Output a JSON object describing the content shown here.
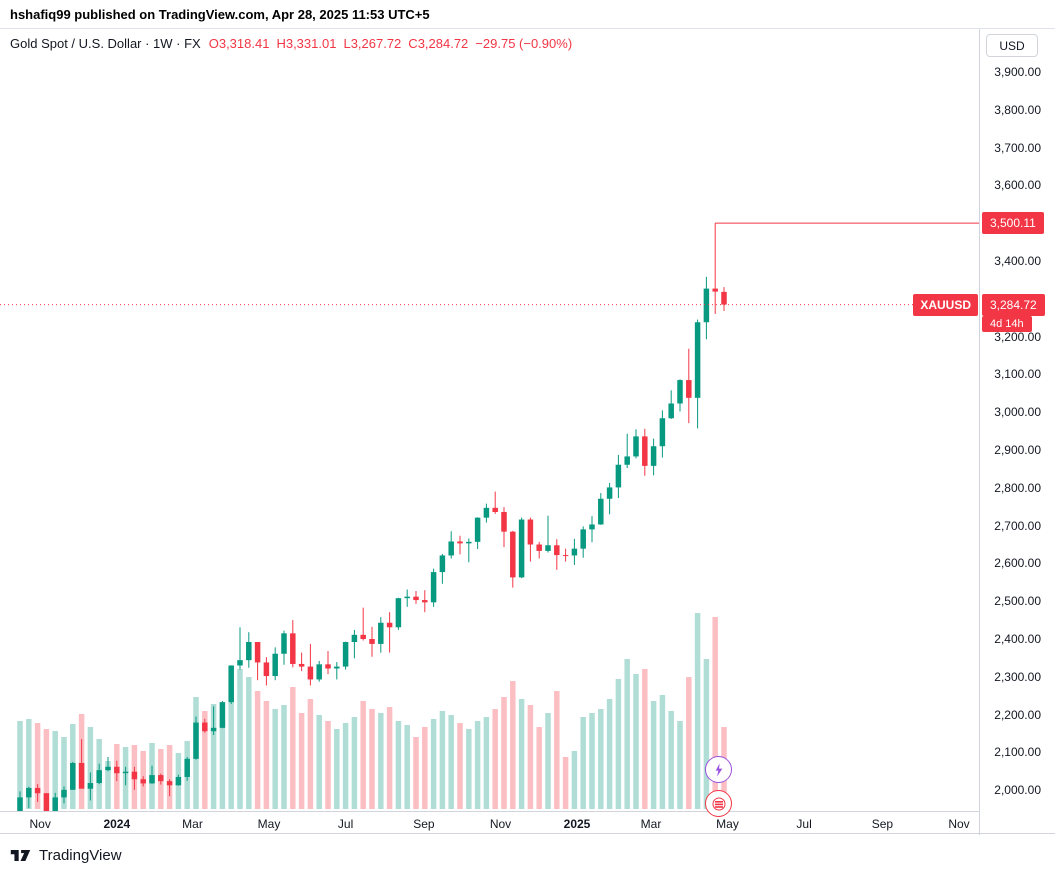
{
  "header": {
    "published_line": "hshafiq99 published on TradingView.com, Apr 28, 2025 11:53 UTC+5"
  },
  "legend": {
    "symbol_title": "Gold Spot / U.S. Dollar · 1W · FX",
    "ohlc": {
      "o_label": "O",
      "o": "3,318.41",
      "h_label": "H",
      "h": "3,331.01",
      "l_label": "L",
      "l": "3,267.72",
      "c_label": "C",
      "c": "3,284.72",
      "change": "−29.75 (−0.90%)"
    }
  },
  "price_axis": {
    "currency_button": "USD",
    "high_line_label": "3,500.11",
    "symbol_badge": "XAUUSD",
    "last_price_label": "3,284.72",
    "countdown": "4d 14h"
  },
  "footer": {
    "brand": "TradingView"
  },
  "colors": {
    "up": "#089981",
    "down": "#f23645",
    "text": "#131722",
    "axis_border": "#d1d4dc",
    "badge_red": "#f23645",
    "boost_purple": "#9b51e0"
  },
  "chart_data": {
    "type": "candlestick",
    "title": "Gold Spot / U.S. Dollar",
    "symbol": "XAUUSD",
    "timeframe": "1W",
    "exchange": "FX",
    "start_date": "2023-10-16",
    "interval_days": 7,
    "ylim": [
      1945,
      3930
    ],
    "y_tick_min": 2000,
    "y_tick_max": 3900,
    "y_tick_step": 100,
    "grid": false,
    "high_line": 3500.11,
    "last_price": 3284.72,
    "last_change": -29.75,
    "last_change_pct": -0.9,
    "candles_format": [
      "open",
      "high",
      "low",
      "close",
      "volume"
    ],
    "candles": [
      [
        1932,
        1997,
        1908,
        1981,
        88
      ],
      [
        1981,
        2009,
        1953,
        2006,
        90
      ],
      [
        2006,
        2016,
        1969,
        1992,
        86
      ],
      [
        1992,
        1992,
        1931,
        1938,
        80
      ],
      [
        1938,
        1993,
        1932,
        1981,
        78
      ],
      [
        1981,
        2010,
        1965,
        2001,
        72
      ],
      [
        2001,
        2075,
        2001,
        2072,
        85
      ],
      [
        2072,
        2135,
        2009,
        2004,
        95
      ],
      [
        2004,
        2047,
        1973,
        2019,
        82
      ],
      [
        2019,
        2070,
        2016,
        2053,
        70
      ],
      [
        2053,
        2088,
        2050,
        2062,
        48
      ],
      [
        2062,
        2078,
        2024,
        2045,
        65
      ],
      [
        2045,
        2062,
        2013,
        2049,
        62
      ],
      [
        2049,
        2062,
        2001,
        2029,
        64
      ],
      [
        2029,
        2037,
        2010,
        2018,
        58
      ],
      [
        2018,
        2065,
        2017,
        2040,
        66
      ],
      [
        2040,
        2044,
        2015,
        2024,
        60
      ],
      [
        2024,
        2029,
        1984,
        2013,
        64
      ],
      [
        2013,
        2041,
        2012,
        2035,
        56
      ],
      [
        2035,
        2088,
        2025,
        2083,
        68
      ],
      [
        2083,
        2195,
        2081,
        2179,
        112
      ],
      [
        2179,
        2189,
        2152,
        2156,
        98
      ],
      [
        2156,
        2222,
        2146,
        2165,
        105
      ],
      [
        2165,
        2236,
        2164,
        2233,
        90
      ],
      [
        2233,
        2330,
        2228,
        2330,
        128
      ],
      [
        2330,
        2431,
        2319,
        2344,
        140
      ],
      [
        2344,
        2418,
        2324,
        2392,
        132
      ],
      [
        2392,
        2392,
        2291,
        2338,
        118
      ],
      [
        2338,
        2352,
        2277,
        2302,
        108
      ],
      [
        2302,
        2378,
        2291,
        2361,
        100
      ],
      [
        2361,
        2422,
        2332,
        2415,
        104
      ],
      [
        2415,
        2450,
        2325,
        2334,
        122
      ],
      [
        2334,
        2364,
        2315,
        2327,
        96
      ],
      [
        2327,
        2387,
        2277,
        2293,
        110
      ],
      [
        2293,
        2342,
        2287,
        2333,
        94
      ],
      [
        2333,
        2368,
        2307,
        2322,
        88
      ],
      [
        2322,
        2339,
        2293,
        2327,
        80
      ],
      [
        2327,
        2393,
        2319,
        2392,
        86
      ],
      [
        2392,
        2424,
        2349,
        2411,
        92
      ],
      [
        2411,
        2483,
        2396,
        2400,
        108
      ],
      [
        2400,
        2432,
        2353,
        2387,
        100
      ],
      [
        2387,
        2458,
        2364,
        2443,
        96
      ],
      [
        2443,
        2471,
        2364,
        2431,
        102
      ],
      [
        2431,
        2509,
        2424,
        2508,
        88
      ],
      [
        2508,
        2531,
        2485,
        2512,
        84
      ],
      [
        2512,
        2527,
        2493,
        2503,
        72
      ],
      [
        2503,
        2529,
        2471,
        2497,
        82
      ],
      [
        2497,
        2586,
        2485,
        2577,
        90
      ],
      [
        2577,
        2625,
        2546,
        2621,
        98
      ],
      [
        2621,
        2685,
        2613,
        2658,
        94
      ],
      [
        2658,
        2673,
        2624,
        2653,
        86
      ],
      [
        2653,
        2666,
        2603,
        2657,
        80
      ],
      [
        2657,
        2722,
        2638,
        2721,
        88
      ],
      [
        2721,
        2758,
        2708,
        2747,
        92
      ],
      [
        2747,
        2790,
        2731,
        2736,
        100
      ],
      [
        2736,
        2749,
        2643,
        2684,
        112
      ],
      [
        2684,
        2686,
        2536,
        2563,
        128
      ],
      [
        2563,
        2721,
        2561,
        2716,
        110
      ],
      [
        2716,
        2721,
        2605,
        2650,
        104
      ],
      [
        2650,
        2657,
        2613,
        2633,
        82
      ],
      [
        2633,
        2726,
        2629,
        2648,
        96
      ],
      [
        2648,
        2664,
        2583,
        2622,
        118
      ],
      [
        2622,
        2639,
        2605,
        2621,
        52
      ],
      [
        2621,
        2665,
        2596,
        2639,
        58
      ],
      [
        2639,
        2698,
        2615,
        2690,
        92
      ],
      [
        2690,
        2725,
        2656,
        2703,
        96
      ],
      [
        2703,
        2786,
        2702,
        2771,
        100
      ],
      [
        2771,
        2813,
        2730,
        2801,
        110
      ],
      [
        2801,
        2887,
        2773,
        2861,
        130
      ],
      [
        2861,
        2943,
        2852,
        2883,
        150
      ],
      [
        2883,
        2955,
        2878,
        2936,
        135
      ],
      [
        2936,
        2956,
        2832,
        2858,
        140
      ],
      [
        2858,
        2930,
        2833,
        2910,
        108
      ],
      [
        2910,
        3005,
        2880,
        2984,
        114
      ],
      [
        2984,
        3058,
        2982,
        3023,
        98
      ],
      [
        3023,
        3087,
        3002,
        3085,
        88
      ],
      [
        3085,
        3168,
        2971,
        3038,
        132
      ],
      [
        3038,
        3245,
        2957,
        3238,
        196
      ],
      [
        3238,
        3358,
        3193,
        3327,
        150
      ],
      [
        3327,
        3500.11,
        3260,
        3319,
        192
      ],
      [
        3318.41,
        3331.01,
        3267.72,
        3284.72,
        82
      ]
    ],
    "x_ticks": [
      {
        "label": "Nov",
        "week": 2.3
      },
      {
        "label": "2024",
        "week": 11,
        "major": true
      },
      {
        "label": "Mar",
        "week": 19.6
      },
      {
        "label": "May",
        "week": 28.3
      },
      {
        "label": "Jul",
        "week": 37
      },
      {
        "label": "Sep",
        "week": 45.9
      },
      {
        "label": "Nov",
        "week": 54.6
      },
      {
        "label": "2025",
        "week": 63.3,
        "major": true
      },
      {
        "label": "Mar",
        "week": 71.7
      },
      {
        "label": "May",
        "week": 80.4
      },
      {
        "label": "Jul",
        "week": 89.1
      },
      {
        "label": "Sep",
        "week": 98
      },
      {
        "label": "Nov",
        "week": 106.7
      }
    ]
  }
}
